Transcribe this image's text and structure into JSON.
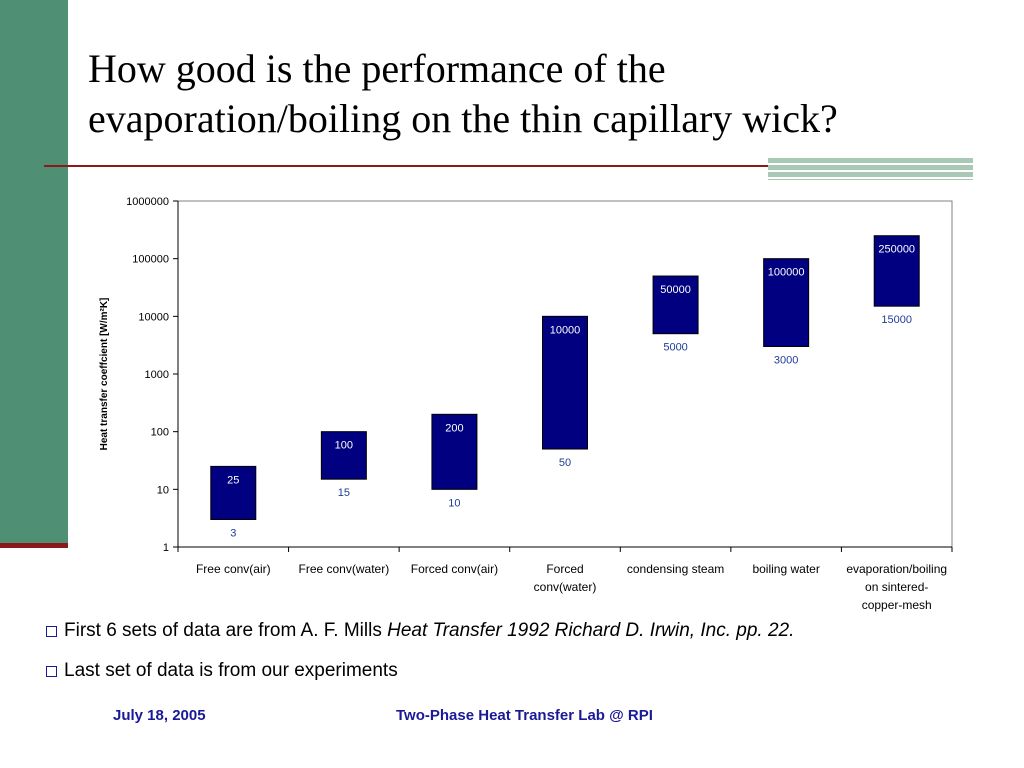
{
  "title": "How good is the performance of the evaporation/boiling on the thin capillary wick?",
  "bullets": [
    {
      "text_plain": "First 6 sets of data are from A. F. Mills ",
      "text_italic": "Heat Transfer 1992 Richard D. Irwin, Inc. pp. 22."
    },
    {
      "text_plain": "Last set of data is from our experiments",
      "text_italic": ""
    }
  ],
  "footer": {
    "date": "July 18, 2005",
    "lab": "Two-Phase Heat Transfer Lab @ RPI"
  },
  "colors": {
    "bar": "#000080",
    "label_dark": "#1f3d99",
    "sidebar": "#4f8f74",
    "rule": "#8b1a1a"
  },
  "chart_data": {
    "type": "bar",
    "scale": "log",
    "ylabel": "Heat transfer coeffcient [W/m²K]",
    "ylim": [
      1,
      1000000
    ],
    "yticks": [
      "1",
      "10",
      "100",
      "1000",
      "10000",
      "100000",
      "1000000"
    ],
    "categories": [
      "Free conv(air)",
      "Free conv(water)",
      "Forced conv(air)",
      "Forced conv(water)",
      "condensing steam",
      "boiling water",
      "evaporation/boiling on sintered-copper-mesh"
    ],
    "category_lines": [
      [
        "Free conv(air)"
      ],
      [
        "Free conv(water)"
      ],
      [
        "Forced conv(air)"
      ],
      [
        "Forced",
        "conv(water)"
      ],
      [
        "condensing steam"
      ],
      [
        "boiling water"
      ],
      [
        "evaporation/boiling",
        "on sintered-",
        "copper-mesh"
      ]
    ],
    "low": [
      3,
      15,
      10,
      50,
      5000,
      3000,
      15000
    ],
    "high": [
      25,
      100,
      200,
      10000,
      50000,
      100000,
      250000
    ],
    "low_labels": [
      "3",
      "15",
      "10",
      "50",
      "5000",
      "3000",
      "15000"
    ],
    "high_labels": [
      "25",
      "100",
      "200",
      "10000",
      "50000",
      "100000",
      "250000"
    ]
  }
}
